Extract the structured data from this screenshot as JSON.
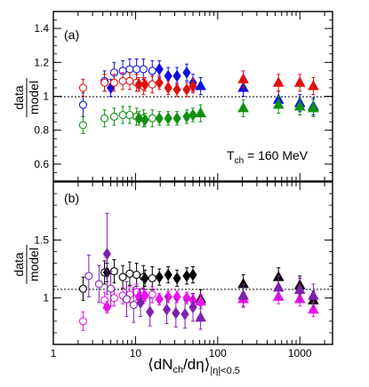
{
  "chart_data": [
    {
      "type": "scatter",
      "panel_label": "(a)",
      "annotation": "T",
      "annotation_sub": "ch",
      "annotation_suffix": " = 160 MeV",
      "ylabel_num": "data",
      "ylabel_den": "model",
      "xlim": [
        1,
        2500
      ],
      "ylim": [
        0.5,
        1.5
      ],
      "x_scale": "log",
      "reference_line": 1.0,
      "yticks": [
        0.6,
        0.8,
        1.0,
        1.2,
        1.4
      ],
      "ytick_labels": [
        "0.6",
        "0.8",
        "1",
        "1.2",
        "1.4"
      ],
      "series": [
        {
          "color": "#1010e0",
          "marker": "circle-open",
          "points": [
            [
              2.3,
              0.95,
              0.07
            ],
            [
              4.2,
              1.09,
              0.06
            ],
            [
              5.5,
              1.14,
              0.06
            ],
            [
              7.0,
              1.15,
              0.06
            ],
            [
              8.5,
              1.16,
              0.06
            ],
            [
              10.3,
              1.16,
              0.06
            ],
            [
              12.5,
              1.16,
              0.06
            ],
            [
              16.0,
              1.15,
              0.06
            ]
          ]
        },
        {
          "color": "#1010e0",
          "marker": "diamond",
          "points": [
            [
              5.0,
              1.05,
              0.05
            ],
            [
              19.5,
              1.16,
              0.05
            ],
            [
              25.0,
              1.12,
              0.05
            ],
            [
              32.0,
              1.12,
              0.05
            ],
            [
              42.0,
              1.14,
              0.05
            ],
            [
              50.0,
              1.08,
              0.05
            ]
          ]
        },
        {
          "color": "#1010e0",
          "marker": "triangle",
          "points": [
            [
              62.0,
              1.06,
              0.05
            ],
            [
              205.0,
              1.05,
              0.05
            ],
            [
              550.0,
              0.98,
              0.05
            ],
            [
              1000.0,
              0.96,
              0.05
            ],
            [
              1460.0,
              0.94,
              0.05
            ]
          ]
        },
        {
          "color": "#e01010",
          "marker": "circle-open",
          "points": [
            [
              2.3,
              1.05,
              0.05
            ],
            [
              4.2,
              1.08,
              0.05
            ],
            [
              5.5,
              1.08,
              0.05
            ],
            [
              7.0,
              1.09,
              0.05
            ],
            [
              8.5,
              1.09,
              0.05
            ],
            [
              10.3,
              1.08,
              0.05
            ],
            [
              12.5,
              1.06,
              0.05
            ],
            [
              16.0,
              1.07,
              0.05
            ]
          ]
        },
        {
          "color": "#e01010",
          "marker": "diamond",
          "points": [
            [
              11.0,
              1.07,
              0.04
            ],
            [
              13.0,
              1.07,
              0.04
            ],
            [
              19.5,
              1.08,
              0.04
            ],
            [
              25.0,
              1.05,
              0.04
            ],
            [
              32.0,
              1.04,
              0.04
            ],
            [
              42.0,
              1.04,
              0.04
            ],
            [
              50.0,
              1.06,
              0.04
            ]
          ]
        },
        {
          "color": "#e01010",
          "marker": "triangle",
          "points": [
            [
              205.0,
              1.1,
              0.05
            ],
            [
              550.0,
              1.08,
              0.05
            ],
            [
              1000.0,
              1.08,
              0.05
            ],
            [
              1460.0,
              1.06,
              0.05
            ]
          ]
        },
        {
          "color": "#109010",
          "marker": "circle-open",
          "points": [
            [
              2.3,
              0.83,
              0.05
            ],
            [
              4.2,
              0.87,
              0.05
            ],
            [
              5.5,
              0.88,
              0.05
            ],
            [
              7.0,
              0.89,
              0.05
            ],
            [
              8.5,
              0.89,
              0.05
            ],
            [
              10.3,
              0.88,
              0.05
            ],
            [
              12.5,
              0.87,
              0.05
            ],
            [
              16.0,
              0.87,
              0.05
            ]
          ]
        },
        {
          "color": "#109010",
          "marker": "diamond",
          "points": [
            [
              11.0,
              0.87,
              0.04
            ],
            [
              13.0,
              0.86,
              0.04
            ],
            [
              19.5,
              0.87,
              0.04
            ],
            [
              25.0,
              0.87,
              0.04
            ],
            [
              32.0,
              0.87,
              0.04
            ],
            [
              42.0,
              0.88,
              0.04
            ],
            [
              50.0,
              0.89,
              0.04
            ]
          ]
        },
        {
          "color": "#109010",
          "marker": "triangle",
          "points": [
            [
              62.0,
              0.9,
              0.05
            ],
            [
              205.0,
              0.93,
              0.05
            ],
            [
              550.0,
              0.95,
              0.05
            ],
            [
              1000.0,
              0.94,
              0.05
            ],
            [
              1460.0,
              0.93,
              0.05
            ]
          ]
        }
      ]
    },
    {
      "type": "scatter",
      "panel_label": "(b)",
      "ylabel_num": "data",
      "ylabel_den": "model",
      "xlim": [
        1,
        2500
      ],
      "ylim": [
        0.6,
        2.0
      ],
      "x_scale": "log",
      "reference_line": 1.0,
      "yticks": [
        1.0,
        1.5
      ],
      "ytick_labels": [
        "1",
        "1.5"
      ],
      "series": [
        {
          "color": "#000000",
          "marker": "circle-open",
          "points": [
            [
              2.3,
              1.08,
              0.1
            ],
            [
              4.2,
              1.22,
              0.1
            ],
            [
              5.5,
              1.23,
              0.1
            ],
            [
              7.0,
              1.18,
              0.1
            ],
            [
              8.5,
              1.21,
              0.1
            ],
            [
              10.3,
              1.2,
              0.1
            ],
            [
              12.5,
              1.18,
              0.1
            ],
            [
              16.0,
              1.17,
              0.1
            ]
          ]
        },
        {
          "color": "#000000",
          "marker": "diamond",
          "points": [
            [
              4.5,
              1.22,
              0.08
            ],
            [
              13.0,
              1.17,
              0.07
            ],
            [
              19.5,
              1.18,
              0.07
            ],
            [
              25.0,
              1.2,
              0.07
            ],
            [
              32.0,
              1.17,
              0.07
            ],
            [
              42.0,
              1.19,
              0.07
            ],
            [
              50.0,
              1.2,
              0.07
            ]
          ]
        },
        {
          "color": "#000000",
          "marker": "triangle",
          "points": [
            [
              62.0,
              0.99,
              0.08
            ],
            [
              205.0,
              1.12,
              0.08
            ],
            [
              550.0,
              1.18,
              0.08
            ],
            [
              1000.0,
              1.11,
              0.08
            ],
            [
              1460.0,
              0.98,
              0.08
            ]
          ]
        },
        {
          "color": "#ee10ee",
          "marker": "circle-open",
          "points": [
            [
              2.3,
              0.8,
              0.08
            ],
            [
              4.2,
              0.98,
              0.07
            ],
            [
              5.5,
              1.0,
              0.07
            ],
            [
              7.0,
              1.02,
              0.07
            ],
            [
              8.5,
              1.03,
              0.07
            ],
            [
              10.3,
              1.05,
              0.07
            ],
            [
              12.5,
              1.02,
              0.07
            ],
            [
              16.0,
              1.03,
              0.07
            ]
          ]
        },
        {
          "color": "#ee10ee",
          "marker": "diamond",
          "points": [
            [
              4.5,
              0.92,
              0.05
            ],
            [
              11.0,
              1.01,
              0.05
            ],
            [
              13.0,
              1.02,
              0.05
            ],
            [
              19.5,
              0.99,
              0.05
            ],
            [
              25.0,
              1.01,
              0.05
            ],
            [
              32.0,
              1.01,
              0.05
            ],
            [
              42.0,
              1.0,
              0.05
            ],
            [
              50.0,
              0.98,
              0.05
            ]
          ]
        },
        {
          "color": "#ee10ee",
          "marker": "triangle",
          "points": [
            [
              62.0,
              0.97,
              0.06
            ],
            [
              205.0,
              0.99,
              0.06
            ],
            [
              550.0,
              1.01,
              0.06
            ],
            [
              1000.0,
              0.99,
              0.06
            ],
            [
              1460.0,
              0.9,
              0.06
            ]
          ]
        },
        {
          "color": "#8020b0",
          "marker": "circle-open",
          "points": [
            [
              2.7,
              1.19,
              0.18
            ],
            [
              3.6,
              1.12,
              0.16
            ],
            [
              5.0,
              1.08,
              0.15
            ],
            [
              7.8,
              0.99,
              0.15
            ],
            [
              9.5,
              0.94,
              0.15
            ]
          ]
        },
        {
          "color": "#8020b0",
          "marker": "diamond",
          "points": [
            [
              4.5,
              1.38,
              0.35
            ],
            [
              11.5,
              0.96,
              0.12
            ],
            [
              15.0,
              0.88,
              0.12
            ],
            [
              24.0,
              0.9,
              0.12
            ],
            [
              31.0,
              0.87,
              0.12
            ],
            [
              40.0,
              0.86,
              0.12
            ],
            [
              50.0,
              0.92,
              0.12
            ]
          ]
        },
        {
          "color": "#8020b0",
          "marker": "triangle",
          "points": [
            [
              62.0,
              0.83,
              0.1
            ],
            [
              205.0,
              1.02,
              0.1
            ],
            [
              550.0,
              1.09,
              0.1
            ],
            [
              1000.0,
              1.07,
              0.1
            ],
            [
              1460.0,
              1.02,
              0.1
            ]
          ]
        }
      ]
    }
  ],
  "x_axis": {
    "tick_values": [
      1,
      10,
      100,
      1000
    ],
    "tick_labels": [
      "1",
      "10",
      "100",
      "1000"
    ],
    "label_main": "⟨dN",
    "label_sub1": "ch",
    "label_mid": "/dη⟩",
    "label_sub2": "|η|<0.5"
  }
}
